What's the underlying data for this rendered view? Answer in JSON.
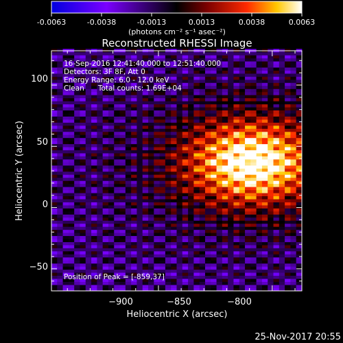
{
  "colorbar": {
    "ticks": [
      "-0.0063",
      "-0.0038",
      "-0.0013",
      "0.0013",
      "0.0038",
      "0.0063"
    ],
    "units_label": "(photons cm⁻² s⁻¹ asec⁻²)",
    "colors": [
      "#0000e0",
      "#7a00ff",
      "#000000",
      "#7a0000",
      "#ff2a00",
      "#ffc800",
      "#ffffff"
    ]
  },
  "plot": {
    "title": "Reconstructed RHESSI Image",
    "annotations": [
      "16-Sep-2016 12:41:40.000 to 12:51:40.000",
      "Detectors: 3F 8F, Att 0",
      "Energy Range: 6.0 - 12.0 keV",
      "Clean      Total counts: 1.69E+04"
    ],
    "peak_label": "Position of Peak = [-859,37]",
    "footer_date": "25-Nov-2017 20:55"
  },
  "chart_data": {
    "type": "heatmap",
    "title": "Reconstructed RHESSI Image",
    "xlabel": "Heliocentric X (arcsec)",
    "ylabel": "Heliocentric Y (arcsec)",
    "xlim": [
      -947,
      -837
    ],
    "ylim": [
      -68,
      128
    ],
    "x_ticks": [
      -900,
      -850,
      -800
    ],
    "x_tick_labels": [
      "−900",
      "−850",
      "−800"
    ],
    "y_ticks": [
      100,
      50,
      0,
      -50
    ],
    "y_tick_labels": [
      "100",
      "50",
      "0",
      "−50"
    ],
    "colorbar_range": [
      -0.0063,
      0.0063
    ],
    "peak": {
      "x": -859,
      "y": 37
    },
    "colormap": "blue-purple-black-red-yellow-white"
  }
}
